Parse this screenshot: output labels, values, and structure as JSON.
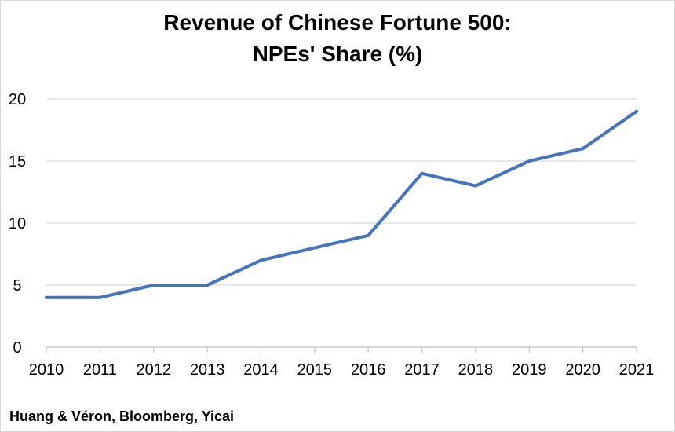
{
  "chart_data": {
    "type": "line",
    "title": "Revenue of Chinese Fortune 500:",
    "subtitle": "NPEs' Share (%)",
    "xlabel": "",
    "ylabel": "",
    "x": [
      "2010",
      "2011",
      "2012",
      "2013",
      "2014",
      "2015",
      "2016",
      "2017",
      "2018",
      "2019",
      "2020",
      "2021"
    ],
    "series": [
      {
        "values": [
          4,
          4,
          5,
          5,
          7,
          8,
          9,
          14,
          13,
          15,
          16,
          19
        ]
      }
    ],
    "y_ticks": [
      0,
      5,
      10,
      15,
      20
    ],
    "ylim": [
      0,
      20
    ],
    "grid": "horizontal",
    "legend": "none",
    "colors": {
      "line": "#4472C4",
      "grid": "#d9d9d9",
      "axis": "#bfbfbf"
    }
  },
  "source": "Huang & Véron, Bloomberg, Yicai"
}
